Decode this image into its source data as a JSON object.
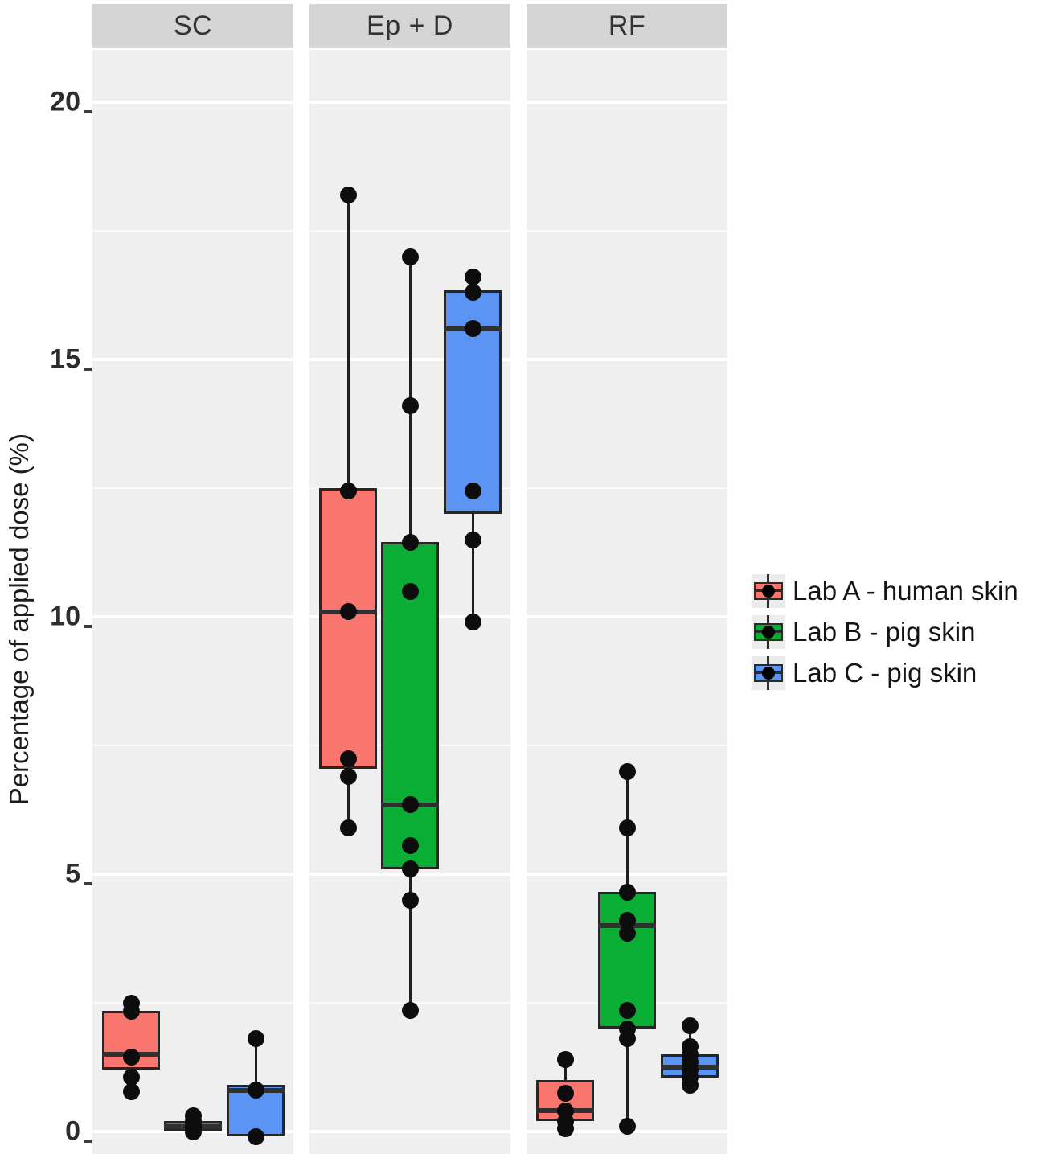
{
  "figure": {
    "y_axis_title": "Percentage of applied dose (%)",
    "colors": {
      "panel_bg": "#efefef",
      "strip_bg": "#d5d5d5",
      "grid_major": "#ffffff",
      "box_border": "#262626",
      "point": "#0d0d0d",
      "lab_a_red": "#f8766d",
      "lab_b_green": "#0aae35",
      "lab_c_blue": "#5b94f2"
    }
  },
  "legend": {
    "items": [
      {
        "label": "Lab A - human skin",
        "color": "#f8766d"
      },
      {
        "label": "Lab B - pig skin",
        "color": "#0aae35"
      },
      {
        "label": "Lab C - pig skin",
        "color": "#5b94f2"
      }
    ]
  },
  "chart_data": {
    "type": "boxplot",
    "title": "",
    "ylabel": "Percentage of applied dose (%)",
    "ylim": [
      -0.5,
      21
    ],
    "yticks": [
      20,
      15,
      10,
      5,
      0
    ],
    "grid": "major+minor white on gray panels",
    "legend_position": "right",
    "facets": [
      "SC",
      "Ep + D",
      "RF"
    ],
    "series": [
      {
        "name": "Lab A - human skin",
        "color": "#f8766d",
        "data": {
          "SC": {
            "q1": 1.2,
            "median": 1.5,
            "q3": 2.35,
            "whisker_low": 0.8,
            "whisker_high": 2.5,
            "points": [
              2.5,
              2.33,
              1.45,
              1.05,
              0.78
            ]
          },
          "Ep + D": {
            "q1": 7.05,
            "median": 10.1,
            "q3": 12.5,
            "whisker_low": 5.9,
            "whisker_high": 18.2,
            "points": [
              18.2,
              12.45,
              10.1,
              7.25,
              6.9,
              5.9
            ]
          },
          "RF": {
            "q1": 0.2,
            "median": 0.4,
            "q3": 1.0,
            "whisker_low": 0.05,
            "whisker_high": 1.4,
            "points": [
              1.4,
              0.75,
              0.4,
              0.2,
              0.05
            ]
          }
        }
      },
      {
        "name": "Lab B - pig skin",
        "color": "#0aae35",
        "data": {
          "SC": {
            "q1": 0.0,
            "median": 0.1,
            "q3": 0.2,
            "whisker_low": 0.0,
            "whisker_high": 0.3,
            "points": [
              0.3,
              0.2,
              0.12,
              0.05,
              0.0
            ]
          },
          "Ep + D": {
            "q1": 5.1,
            "median": 6.35,
            "q3": 11.45,
            "whisker_low": 2.35,
            "whisker_high": 17.0,
            "points": [
              17.0,
              14.1,
              11.45,
              10.5,
              6.35,
              5.55,
              5.1,
              4.5,
              2.35
            ]
          },
          "RF": {
            "q1": 2.0,
            "median": 4.0,
            "q3": 4.65,
            "whisker_low": 0.1,
            "whisker_high": 7.0,
            "points": [
              7.0,
              5.9,
              4.65,
              4.1,
              3.85,
              2.35,
              2.0,
              1.8,
              0.1
            ]
          }
        }
      },
      {
        "name": "Lab C - pig skin",
        "color": "#5b94f2",
        "data": {
          "SC": {
            "q1": -0.1,
            "median": 0.8,
            "q3": 0.9,
            "whisker_low": -0.1,
            "whisker_high": 1.8,
            "points": [
              1.8,
              0.8,
              -0.1
            ]
          },
          "Ep + D": {
            "q1": 12.0,
            "median": 15.6,
            "q3": 16.35,
            "whisker_low": 9.9,
            "whisker_high": 16.6,
            "points": [
              16.6,
              16.3,
              15.6,
              12.45,
              11.5,
              9.9
            ]
          },
          "RF": {
            "q1": 1.05,
            "median": 1.25,
            "q3": 1.5,
            "whisker_low": 0.9,
            "whisker_high": 2.05,
            "points": [
              2.05,
              1.65,
              1.5,
              1.35,
              1.2,
              1.05,
              0.9
            ]
          }
        }
      }
    ]
  }
}
